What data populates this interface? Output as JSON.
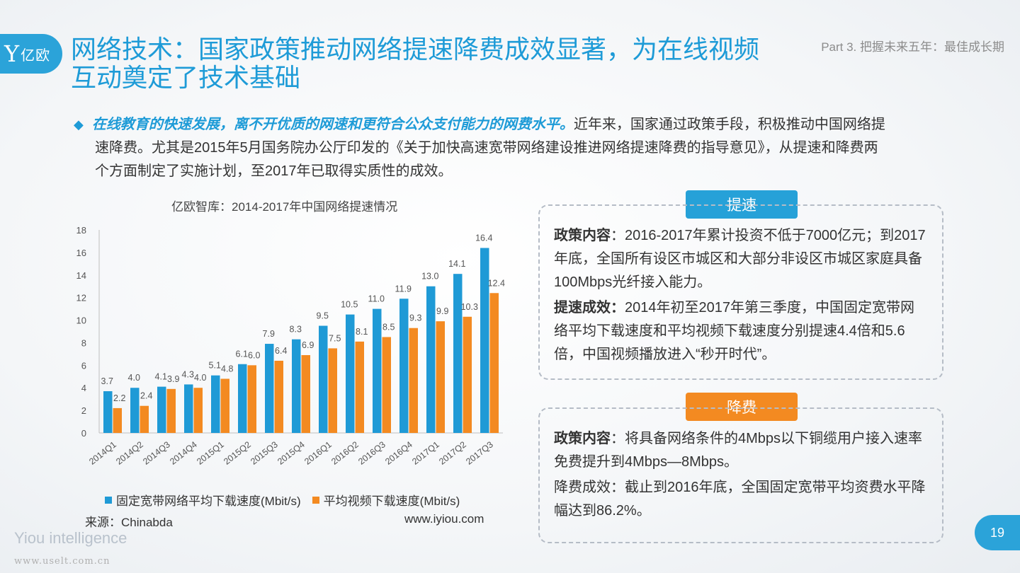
{
  "header": {
    "logo_text": "亿欧",
    "title_line1": "网络技术：国家政策推动网络提速降费成效显著，为在线视频",
    "title_line2": "互动奠定了技术基础",
    "part_label": "Part 3. 把握未来五年：最佳成长期"
  },
  "intro": {
    "bullet": "◆",
    "emphasis": "在线教育的快速发展，离不开优质的网速和更符合公众支付能力的网费水平。",
    "body_line1": "近年来，国家通过政策手段，积极推动中国网络提",
    "body_line2": "速降费。尤其是2015年5月国务院办公厅印发的《关于加快高速宽带网络建设推进网络提速降费的指导意见》，从提速和降费两",
    "body_line3": "个方面制定了实施计划，至2017年已取得实质性的成效。"
  },
  "chart_data": {
    "type": "bar",
    "title": "亿欧智库：2014-2017年中国网络提速情况",
    "categories": [
      "2014Q1",
      "2014Q2",
      "2014Q3",
      "2014Q4",
      "2015Q1",
      "2015Q2",
      "2015Q3",
      "2015Q4",
      "2016Q1",
      "2016Q2",
      "2016Q3",
      "2016Q4",
      "2017Q1",
      "2017Q2",
      "2017Q3"
    ],
    "series": [
      {
        "name": "固定宽带网络平均下载速度(Mbit/s)",
        "color": "#1f9ad6",
        "values": [
          3.7,
          4.0,
          4.1,
          4.3,
          5.1,
          6.1,
          7.9,
          8.3,
          9.5,
          10.5,
          11.0,
          11.9,
          13.0,
          14.1,
          16.4
        ]
      },
      {
        "name": "平均视频下载速度(Mbit/s)",
        "color": "#f38a21",
        "values": [
          2.2,
          2.4,
          3.9,
          4.0,
          4.8,
          6.0,
          6.4,
          6.9,
          7.5,
          8.1,
          8.5,
          9.3,
          9.9,
          10.3,
          12.4
        ]
      }
    ],
    "yticks": [
      0,
      2,
      4,
      6,
      8,
      10,
      12,
      14,
      16,
      18
    ],
    "ylim": [
      0,
      18
    ],
    "grid": false,
    "legend": "bottom",
    "source": "来源：Chinabda",
    "site": "www.iyiou.com"
  },
  "panel_speed": {
    "tag": "提速",
    "p1_label": "政策内容",
    "p1_text": "：2016-2017年累计投资不低于7000亿元；到2017年底，全国所有设区市城区和大部分非设区市城区家庭具备100Mbps光纤接入能力。",
    "p2_label": "提速成效：",
    "p2_text": "2014年初至2017年第三季度，中国固定宽带网络平均下载速度和平均视频下载速度分别提速4.4倍和5.6倍，中国视频播放进入“秒开时代”。"
  },
  "panel_fee": {
    "tag": "降费",
    "p1_label": "政策内容",
    "p1_text": "：将具备网络条件的4Mbps以下铜缆用户接入速率免费提升到4Mbps—8Mbps。",
    "p2_text": "降费成效：截止到2016年底，全国固定宽带平均资费水平降幅达到86.2%。"
  },
  "footer": {
    "brand": "Yiou intelligence",
    "watermark": "www.uselt.com.cn",
    "page_number": "19"
  }
}
